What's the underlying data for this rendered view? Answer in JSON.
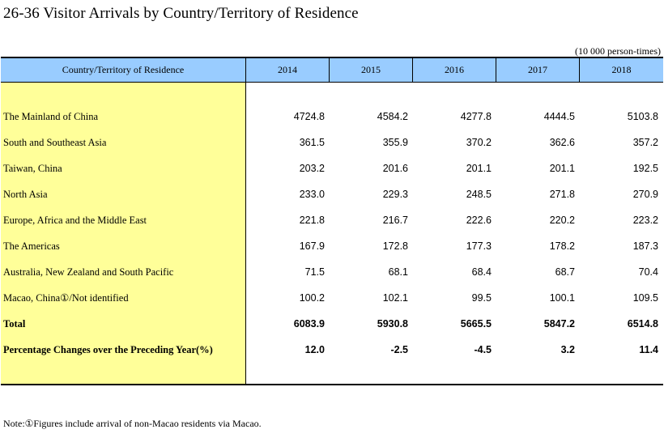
{
  "title": "26-36  Visitor Arrivals by Country/Territory of Residence",
  "unit": "(10 000 person-times)",
  "header": {
    "first": "Country/Territory of Residence",
    "years": [
      "2014",
      "2015",
      "2016",
      "2017",
      "2018"
    ]
  },
  "rows": [
    {
      "label": "The Mainland of China",
      "values": [
        "4724.8",
        "4584.2",
        "4277.8",
        "4444.5",
        "5103.8"
      ]
    },
    {
      "label": "South and Southeast Asia",
      "values": [
        "361.5",
        "355.9",
        "370.2",
        "362.6",
        "357.2"
      ]
    },
    {
      "label": "Taiwan, China",
      "values": [
        "203.2",
        "201.6",
        "201.1",
        "201.1",
        "192.5"
      ]
    },
    {
      "label": "North Asia",
      "values": [
        "233.0",
        "229.3",
        "248.5",
        "271.8",
        "270.9"
      ]
    },
    {
      "label": "Europe, Africa and the Middle East",
      "values": [
        "221.8",
        "216.7",
        "222.6",
        "220.2",
        "223.2"
      ]
    },
    {
      "label": "The Americas",
      "values": [
        "167.9",
        "172.8",
        "177.3",
        "178.2",
        "187.3"
      ]
    },
    {
      "label": "Australia, New Zealand and South Pacific",
      "values": [
        "71.5",
        "68.1",
        "68.4",
        "68.7",
        "70.4"
      ]
    },
    {
      "label": "Macao, China①/Not identified",
      "values": [
        "100.2",
        "102.1",
        "99.5",
        "100.1",
        "109.5"
      ]
    },
    {
      "label": "Total",
      "values": [
        "6083.9",
        "5930.8",
        "5665.5",
        "5847.2",
        "6514.8"
      ]
    },
    {
      "label": "Percentage Changes over the Preceding Year(%)",
      "values": [
        "12.0",
        "-2.5",
        "-4.5",
        "3.2",
        "11.4"
      ]
    }
  ],
  "note": "Note:①Figures include arrival of non-Macao residents via Macao.",
  "colors": {
    "header_bg": "#99ccff",
    "label_col_bg": "#ffff99"
  }
}
